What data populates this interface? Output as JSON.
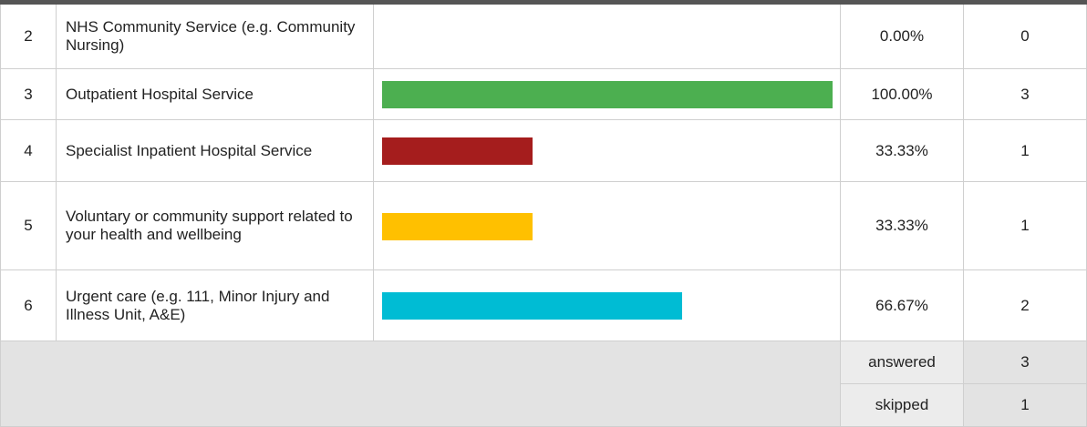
{
  "table": {
    "rows": [
      {
        "number": 2,
        "label": "NHS Community Service (e.g. Community Nursing)",
        "percent": 0,
        "percent_label": "0.00%",
        "count": 0
      },
      {
        "number": 3,
        "label": "Outpatient Hospital Service",
        "percent": 100,
        "percent_label": "100.00%",
        "count": 3,
        "color": "#4caf50"
      },
      {
        "number": 4,
        "label": "Specialist Inpatient Hospital Service",
        "percent": 33.33,
        "percent_label": "33.33%",
        "count": 1,
        "color": "#a51d1d"
      },
      {
        "number": 5,
        "label": "Voluntary or community support related to your health and wellbeing",
        "percent": 33.33,
        "percent_label": "33.33%",
        "count": 1,
        "color": "#ffc000"
      },
      {
        "number": 6,
        "label": "Urgent care (e.g. 111, Minor Injury and Illness Unit, A&E)",
        "percent": 66.67,
        "percent_label": "66.67%",
        "count": 2,
        "color": "#00bcd4"
      }
    ],
    "answered_label": "answered",
    "answered": 3,
    "skipped_label": "skipped",
    "skipped": 1
  }
}
